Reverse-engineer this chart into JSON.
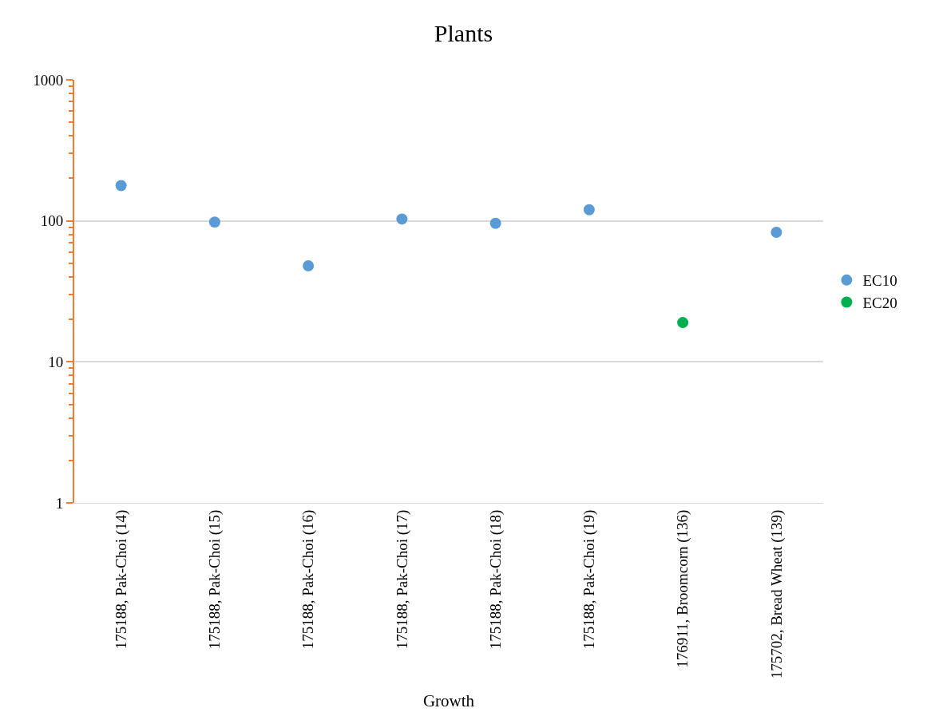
{
  "chart_data": {
    "type": "scatter",
    "title": "Plants",
    "xlabel": "Growth",
    "categories": [
      "175188, Pak-Choi (14)",
      "175188, Pak-Choi (15)",
      "175188, Pak-Choi (16)",
      "175188, Pak-Choi (17)",
      "175188, Pak-Choi (18)",
      "175188, Pak-Choi (19)",
      "176911, Broomcorn (136)",
      "175702, Bread Wheat (139)"
    ],
    "series": [
      {
        "name": "EC10",
        "color": "#5b9bd5",
        "values": [
          178,
          98,
          48,
          103,
          96,
          120,
          null,
          83
        ]
      },
      {
        "name": "EC20",
        "color": "#00b050",
        "values": [
          null,
          null,
          null,
          null,
          null,
          null,
          19,
          null
        ]
      }
    ],
    "log": "y",
    "ylim": [
      1,
      1000
    ],
    "yticks": [
      1,
      10,
      100,
      1000
    ],
    "grid": "y",
    "legend": "right",
    "marker": "circle"
  }
}
